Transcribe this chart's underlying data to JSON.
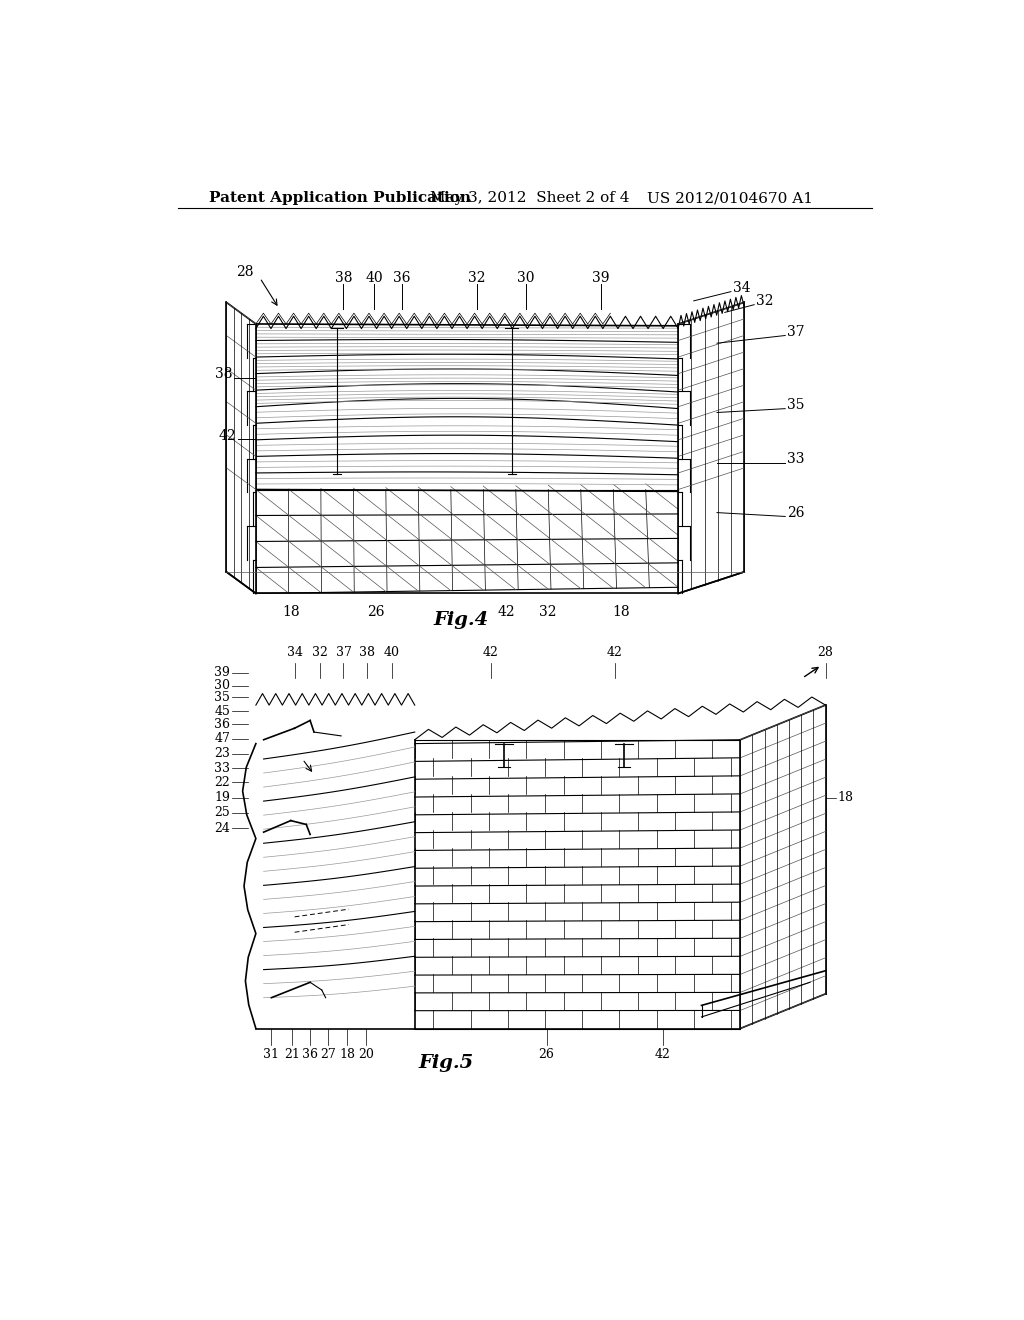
{
  "bg_color": "#ffffff",
  "header_left": "Patent Application Publication",
  "header_mid": "May 3, 2012  Sheet 2 of 4",
  "header_right": "US 2012/0104670 A1",
  "fig4_label": "Fig.4",
  "fig5_label": "Fig.5",
  "header_font_size": 11,
  "label_font_size": 10,
  "fig_label_font_size": 14,
  "ref_font_size": 10
}
